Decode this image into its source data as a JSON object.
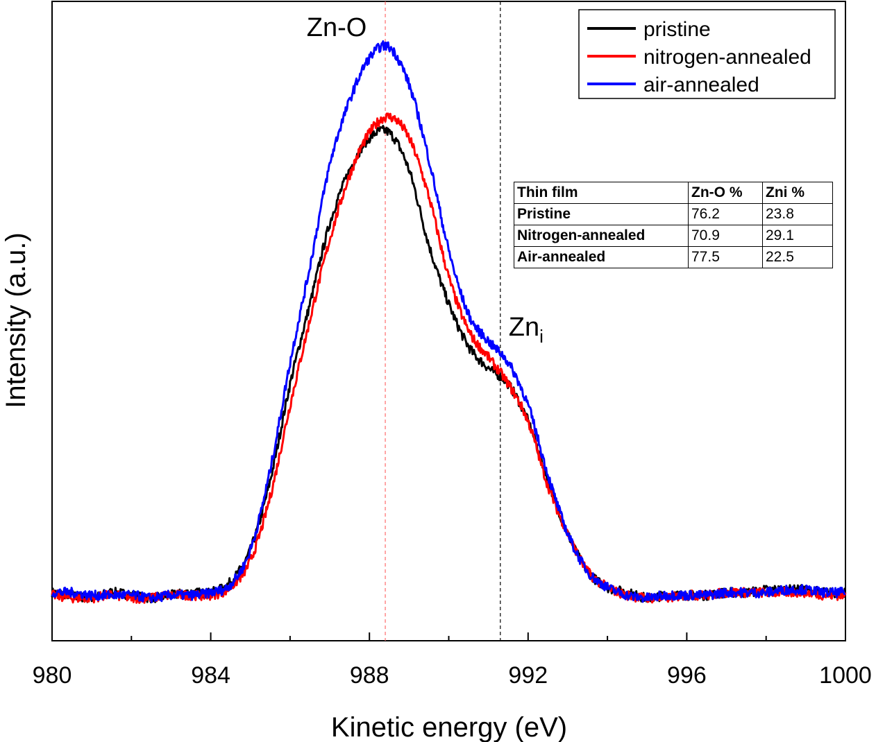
{
  "chart_data": {
    "type": "line",
    "title": "",
    "xlabel": "Kinetic energy (eV)",
    "ylabel": "Intensity (a.u.)",
    "xlim": [
      980,
      1000
    ],
    "ylim": [
      -0.04,
      1.06
    ],
    "xticks": [
      980,
      984,
      988,
      992,
      996,
      1000
    ],
    "yticks_visible": false,
    "grid": false,
    "legend_position": "top-right",
    "x": [
      980,
      980.5,
      981,
      981.5,
      982,
      982.5,
      983,
      983.5,
      984,
      984.5,
      985,
      985.5,
      986,
      986.5,
      987,
      987.5,
      988,
      988.5,
      989,
      989.5,
      990,
      990.5,
      991,
      991.5,
      992,
      992.5,
      993,
      993.5,
      994,
      994.5,
      995,
      995.5,
      996,
      996.5,
      997,
      997.5,
      998,
      998.5,
      999,
      999.5,
      1000
    ],
    "series": [
      {
        "name": "pristine",
        "color": "#000000",
        "values": [
          0.01,
          0.005,
          0.0,
          0.01,
          0.005,
          0.0,
          0.005,
          0.01,
          0.01,
          0.03,
          0.09,
          0.22,
          0.4,
          0.55,
          0.7,
          0.8,
          0.86,
          0.87,
          0.8,
          0.66,
          0.55,
          0.47,
          0.43,
          0.4,
          0.33,
          0.22,
          0.12,
          0.05,
          0.02,
          0.01,
          0.0,
          0.005,
          0.005,
          0.005,
          0.01,
          0.01,
          0.015,
          0.015,
          0.015,
          0.01,
          0.01
        ]
      },
      {
        "name": "nitrogen-annealed",
        "color": "#ff0000",
        "values": [
          0.005,
          0.0,
          0.0,
          0.005,
          0.0,
          0.0,
          0.005,
          0.005,
          0.005,
          0.02,
          0.07,
          0.19,
          0.36,
          0.52,
          0.67,
          0.79,
          0.87,
          0.9,
          0.86,
          0.75,
          0.6,
          0.5,
          0.45,
          0.4,
          0.33,
          0.21,
          0.12,
          0.05,
          0.02,
          0.005,
          0.0,
          0.0,
          0.005,
          0.005,
          0.01,
          0.01,
          0.01,
          0.01,
          0.01,
          0.005,
          0.005
        ]
      },
      {
        "name": "air-annealed",
        "color": "#0000ff",
        "values": [
          0.01,
          0.01,
          0.005,
          0.005,
          0.005,
          0.0,
          0.005,
          0.005,
          0.01,
          0.025,
          0.09,
          0.24,
          0.44,
          0.62,
          0.81,
          0.93,
          1.01,
          1.03,
          0.96,
          0.82,
          0.65,
          0.53,
          0.48,
          0.44,
          0.36,
          0.23,
          0.12,
          0.05,
          0.02,
          0.005,
          0.0,
          0.005,
          0.005,
          0.005,
          0.01,
          0.01,
          0.01,
          0.015,
          0.015,
          0.01,
          0.01
        ]
      }
    ],
    "reference_lines": [
      {
        "x": 988.4,
        "label": "Zn-O",
        "color": "#ff6b6b"
      },
      {
        "x": 991.3,
        "label": "Zn",
        "label_subscript": "i",
        "color": "#000000"
      }
    ]
  },
  "table": {
    "headers": [
      "Thin film",
      "Zn-O %",
      "Zni %"
    ],
    "rows": [
      [
        "Pristine",
        "76.2",
        "23.8"
      ],
      [
        "Nitrogen-annealed",
        "70.9",
        "29.1"
      ],
      [
        "Air-annealed",
        "77.5",
        "22.5"
      ]
    ]
  }
}
